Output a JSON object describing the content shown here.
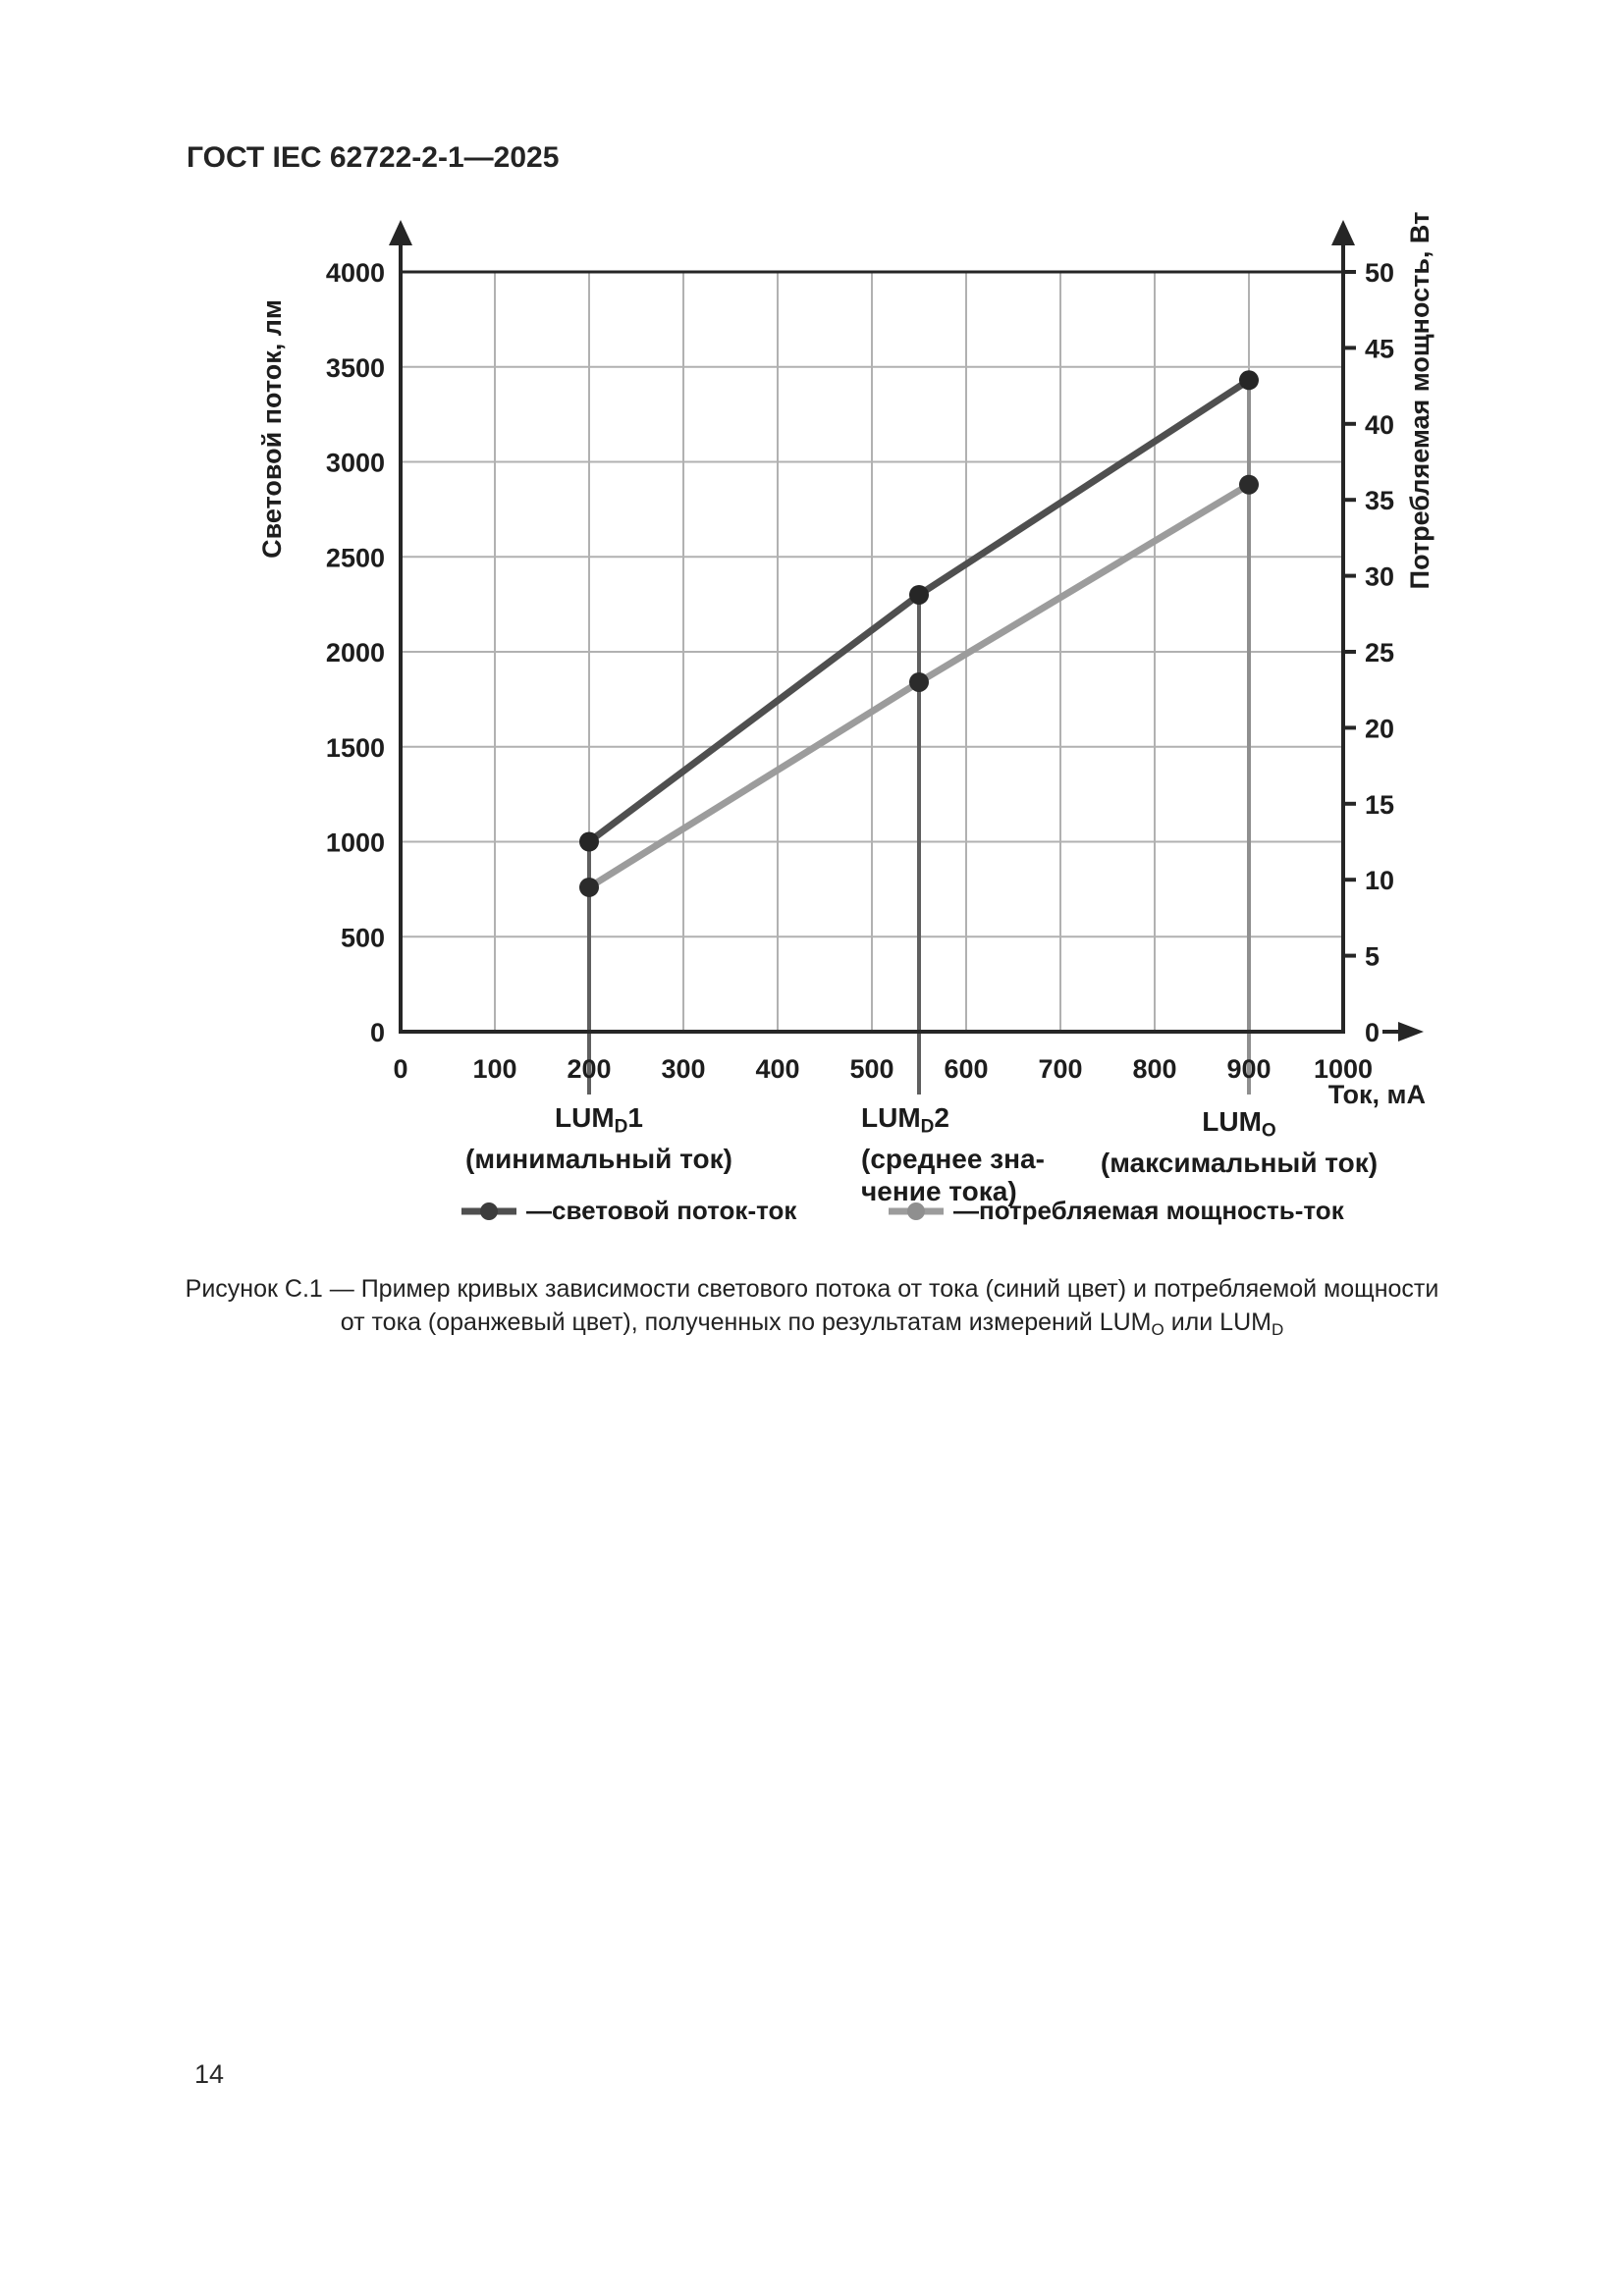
{
  "header": {
    "title": "ГОСТ IEC 62722-2-1—2025"
  },
  "page_number": "14",
  "chart_data": {
    "type": "line",
    "grid": true,
    "legend_position": "bottom",
    "x_axis": {
      "label": "Ток, мА",
      "min": 0,
      "max": 1000,
      "ticks": [
        0,
        100,
        200,
        300,
        400,
        500,
        600,
        700,
        800,
        900,
        1000
      ]
    },
    "y_left": {
      "label": "Световой поток, лм",
      "min": 0,
      "max": 4000,
      "ticks": [
        0,
        500,
        1000,
        1500,
        2000,
        2500,
        3000,
        3500,
        4000
      ]
    },
    "y_right": {
      "label": "Потребляемая мощность, Вт",
      "min": 0,
      "max": 50,
      "ticks": [
        0,
        5,
        10,
        15,
        20,
        25,
        30,
        35,
        40,
        45,
        50
      ]
    },
    "series": [
      {
        "name": "световой поток-ток",
        "axis": "left",
        "color": "#4f4f4f",
        "marker_color": "#262626",
        "x": [
          200,
          550,
          900
        ],
        "y": [
          1000,
          2300,
          3430
        ]
      },
      {
        "name": "потребляемая мощность-ток",
        "axis": "right",
        "color": "#9c9c9c",
        "marker_color": "#2b2b2b",
        "x": [
          200,
          550,
          900
        ],
        "y": [
          9.5,
          23,
          36
        ]
      }
    ],
    "annotations": [
      {
        "x": 200,
        "main": "LUM",
        "sub": "D",
        "suffix": "1",
        "line_color": "#5f5f5f",
        "desc": [
          "(минимальный ток)"
        ]
      },
      {
        "x": 550,
        "main": "LUM",
        "sub": "D",
        "suffix": "2",
        "line_color": "#5f5f5f",
        "desc": [
          "(среднее зна-",
          "чение тока)"
        ]
      },
      {
        "x": 900,
        "main": "LUM",
        "sub": "O",
        "suffix": "",
        "line_color": "#8f8f8f",
        "desc": [
          "(максимальный ток)"
        ]
      }
    ],
    "colors": {
      "grid": "#b1b1b1",
      "axis": "#262626",
      "tick_text": "#1d1d1d"
    }
  },
  "legend": {
    "items": [
      {
        "label": "—световой поток-ток",
        "line_color": "#4f4f4f",
        "dot_color": "#3c3c3c"
      },
      {
        "label": "—потребляемая мощность-ток",
        "line_color": "#9c9c9c",
        "dot_color": "#8f8f8f"
      }
    ]
  },
  "caption": {
    "line1": "Рисунок С.1 — Пример кривых зависимости светового потока от тока (синий цвет) и потребляемой мощности",
    "line2_prefix": "от тока (оранжевый цвет), полученных по результатам измерений LUM",
    "line2_sub1": "O",
    "line2_mid": " или LUM",
    "line2_sub2": "D"
  }
}
